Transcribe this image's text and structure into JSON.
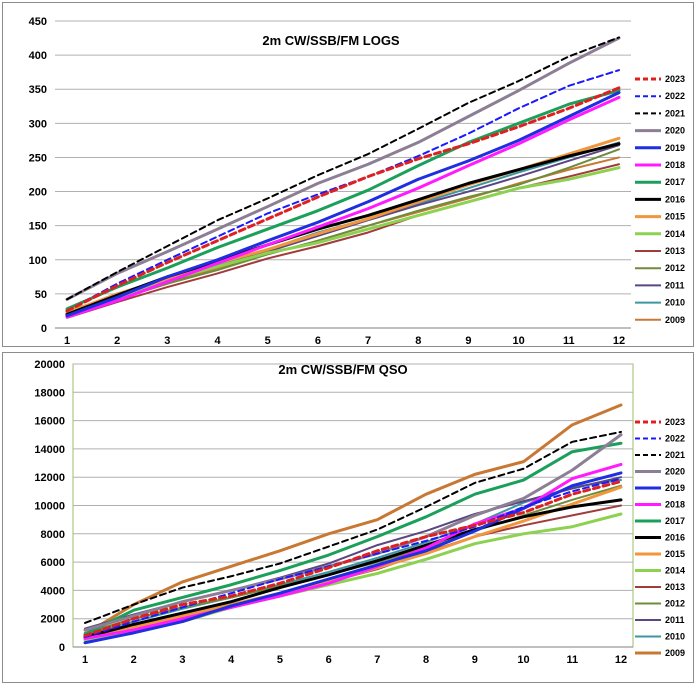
{
  "chart_data": [
    {
      "type": "line",
      "title": "2m CW/SSB/FM LOGS",
      "xlabel": "",
      "ylabel": "",
      "x": [
        1,
        2,
        3,
        4,
        5,
        6,
        7,
        8,
        9,
        10,
        11,
        12
      ],
      "ylim": [
        0,
        450
      ],
      "yticks": [
        0,
        50,
        100,
        150,
        200,
        250,
        300,
        350,
        400,
        450
      ],
      "grid": true,
      "legend_position": "right",
      "series": [
        {
          "name": "2023",
          "color": "#e02020",
          "dash": "dashed",
          "width": 3,
          "values": [
            25,
            62,
            96,
            128,
            160,
            192,
            222,
            248,
            270,
            295,
            322,
            352
          ]
        },
        {
          "name": "2022",
          "color": "#1a1aff",
          "dash": "dashed",
          "width": 2,
          "values": [
            25,
            65,
            100,
            134,
            168,
            196,
            222,
            252,
            285,
            322,
            355,
            378
          ]
        },
        {
          "name": "2021",
          "color": "#000000",
          "dash": "dashed",
          "width": 2,
          "values": [
            42,
            82,
            120,
            158,
            190,
            224,
            255,
            292,
            330,
            362,
            398,
            426
          ]
        },
        {
          "name": "2020",
          "color": "#8c7e94",
          "dash": "solid",
          "width": 3,
          "values": [
            42,
            80,
            112,
            145,
            178,
            212,
            240,
            272,
            310,
            348,
            388,
            425
          ]
        },
        {
          "name": "2019",
          "color": "#1e2ee0",
          "dash": "solid",
          "width": 3,
          "values": [
            18,
            45,
            75,
            100,
            128,
            155,
            185,
            218,
            245,
            275,
            310,
            345
          ]
        },
        {
          "name": "2018",
          "color": "#ff1aff",
          "dash": "solid",
          "width": 3,
          "values": [
            16,
            40,
            68,
            95,
            122,
            148,
            175,
            205,
            238,
            270,
            305,
            338
          ]
        },
        {
          "name": "2017",
          "color": "#1aa05a",
          "dash": "solid",
          "width": 3,
          "values": [
            28,
            60,
            88,
            118,
            145,
            172,
            202,
            238,
            272,
            300,
            328,
            348
          ]
        },
        {
          "name": "2016",
          "color": "#000000",
          "dash": "solid",
          "width": 3,
          "values": [
            20,
            48,
            75,
            98,
            122,
            145,
            165,
            188,
            212,
            232,
            252,
            270
          ]
        },
        {
          "name": "2015",
          "color": "#f0963c",
          "dash": "solid",
          "width": 3,
          "values": [
            22,
            50,
            72,
            95,
            115,
            138,
            160,
            185,
            210,
            232,
            255,
            278
          ]
        },
        {
          "name": "2014",
          "color": "#8cd250",
          "dash": "solid",
          "width": 3,
          "values": [
            25,
            45,
            70,
            90,
            110,
            125,
            145,
            165,
            185,
            205,
            218,
            235
          ]
        },
        {
          "name": "2013",
          "color": "#a03c3c",
          "dash": "solid",
          "width": 2,
          "values": [
            15,
            38,
            60,
            80,
            102,
            120,
            140,
            165,
            185,
            205,
            222,
            240
          ]
        },
        {
          "name": "2012",
          "color": "#6e8c3c",
          "dash": "solid",
          "width": 2,
          "values": [
            22,
            42,
            65,
            85,
            108,
            128,
            150,
            172,
            192,
            210,
            235,
            262
          ]
        },
        {
          "name": "2011",
          "color": "#5a4682",
          "dash": "solid",
          "width": 2,
          "values": [
            20,
            45,
            68,
            90,
            112,
            135,
            158,
            180,
            200,
            222,
            245,
            268
          ]
        },
        {
          "name": "2010",
          "color": "#3c96a0",
          "dash": "solid",
          "width": 2,
          "values": [
            20,
            45,
            70,
            92,
            115,
            140,
            160,
            182,
            205,
            228,
            250,
            272
          ]
        },
        {
          "name": "2009",
          "color": "#c87832",
          "dash": "solid",
          "width": 2,
          "values": [
            22,
            42,
            65,
            88,
            108,
            128,
            150,
            170,
            190,
            212,
            232,
            250
          ]
        }
      ]
    },
    {
      "type": "line",
      "title": "2m CW/SSB/FM QSO",
      "xlabel": "",
      "ylabel": "",
      "x": [
        1,
        2,
        3,
        4,
        5,
        6,
        7,
        8,
        9,
        10,
        11,
        12
      ],
      "ylim": [
        0,
        20000
      ],
      "yticks": [
        0,
        2000,
        4000,
        6000,
        8000,
        10000,
        12000,
        14000,
        16000,
        18000,
        20000
      ],
      "grid": true,
      "legend_position": "right",
      "series": [
        {
          "name": "2023",
          "color": "#e02020",
          "dash": "dashed",
          "width": 3,
          "values": [
            800,
            2000,
            3000,
            3600,
            4500,
            5600,
            6800,
            7800,
            8600,
            9500,
            10800,
            11700
          ]
        },
        {
          "name": "2022",
          "color": "#1a1aff",
          "dash": "dashed",
          "width": 2,
          "values": [
            700,
            1800,
            2800,
            3800,
            4800,
            5700,
            6600,
            7500,
            8500,
            9900,
            11000,
            11900
          ]
        },
        {
          "name": "2021",
          "color": "#000000",
          "dash": "dashed",
          "width": 2,
          "values": [
            1700,
            3000,
            4200,
            5000,
            5900,
            7100,
            8300,
            9900,
            11600,
            12600,
            14500,
            15200
          ]
        },
        {
          "name": "2020",
          "color": "#8c7e94",
          "dash": "solid",
          "width": 3,
          "values": [
            1200,
            2200,
            3200,
            4000,
            4800,
            5700,
            6600,
            7800,
            9300,
            10500,
            12500,
            15000
          ]
        },
        {
          "name": "2019",
          "color": "#1e2ee0",
          "dash": "solid",
          "width": 3,
          "values": [
            300,
            1000,
            1800,
            2900,
            3800,
            4800,
            5800,
            6800,
            8200,
            9800,
            11400,
            12300
          ]
        },
        {
          "name": "2018",
          "color": "#ff1aff",
          "dash": "solid",
          "width": 3,
          "values": [
            600,
            1200,
            2000,
            2800,
            3600,
            4500,
            5700,
            7000,
            8700,
            9800,
            11900,
            12900
          ]
        },
        {
          "name": "2017",
          "color": "#1aa05a",
          "dash": "solid",
          "width": 3,
          "values": [
            900,
            2600,
            3500,
            4400,
            5400,
            6500,
            7800,
            9200,
            10800,
            11800,
            13800,
            14400
          ]
        },
        {
          "name": "2016",
          "color": "#000000",
          "dash": "solid",
          "width": 3,
          "values": [
            700,
            1600,
            2400,
            3200,
            4200,
            5100,
            6100,
            7200,
            8300,
            9200,
            9900,
            10400
          ]
        },
        {
          "name": "2015",
          "color": "#f0963c",
          "dash": "solid",
          "width": 3,
          "values": [
            700,
            1400,
            2200,
            3000,
            3800,
            4600,
            5600,
            6600,
            7800,
            8900,
            10100,
            11300
          ]
        },
        {
          "name": "2014",
          "color": "#8cd250",
          "dash": "solid",
          "width": 3,
          "values": [
            500,
            1200,
            1800,
            2800,
            3600,
            4400,
            5200,
            6200,
            7300,
            8000,
            8500,
            9400
          ]
        },
        {
          "name": "2013",
          "color": "#a03c3c",
          "dash": "solid",
          "width": 2,
          "values": [
            800,
            1600,
            2400,
            3000,
            3800,
            4600,
            5500,
            6700,
            7800,
            8600,
            9300,
            10000
          ]
        },
        {
          "name": "2012",
          "color": "#6e8c3c",
          "dash": "solid",
          "width": 2,
          "values": [
            1000,
            2000,
            2800,
            3500,
            4300,
            5100,
            6000,
            7000,
            8200,
            9300,
            10400,
            11400
          ]
        },
        {
          "name": "2011",
          "color": "#5a4682",
          "dash": "solid",
          "width": 2,
          "values": [
            1300,
            2300,
            3200,
            4000,
            4900,
            5900,
            7200,
            8200,
            9400,
            10300,
            11200,
            12000
          ]
        },
        {
          "name": "2010",
          "color": "#3c96a0",
          "dash": "solid",
          "width": 2,
          "values": [
            900,
            1800,
            2700,
            3500,
            4400,
            5300,
            6300,
            7400,
            8700,
            10200,
            11300,
            11800
          ]
        },
        {
          "name": "2009",
          "color": "#c87832",
          "dash": "solid",
          "width": 3,
          "values": [
            900,
            3000,
            4600,
            5700,
            6800,
            8000,
            9000,
            10800,
            12200,
            13100,
            15700,
            17100
          ]
        }
      ]
    }
  ]
}
